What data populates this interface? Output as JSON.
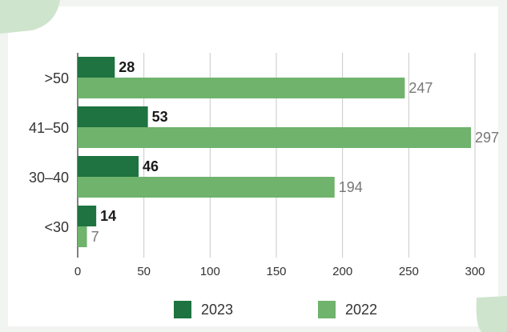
{
  "colors": {
    "series_2023": "#1e7340",
    "series_2022": "#6fb36d",
    "grid": "#c9c9c9",
    "axis": "#555555",
    "label_2023": "#1a1a1a",
    "label_2022": "#777777",
    "background": "#f2f4f1",
    "card": "#ffffff",
    "corner": "#cfe4cd"
  },
  "chart_data": {
    "type": "bar",
    "orientation": "horizontal",
    "categories": [
      ">50",
      "41–50",
      "30–40",
      "<30"
    ],
    "series": [
      {
        "name": "2023",
        "values": [
          28,
          53,
          46,
          14
        ]
      },
      {
        "name": "2022",
        "values": [
          247,
          297,
          194,
          7
        ]
      }
    ],
    "title": "",
    "xlabel": "",
    "ylabel": "",
    "xlim": [
      0,
      300
    ],
    "xticks": [
      0,
      50,
      100,
      150,
      200,
      250,
      300
    ],
    "grid": "vertical",
    "legend_position": "bottom"
  }
}
